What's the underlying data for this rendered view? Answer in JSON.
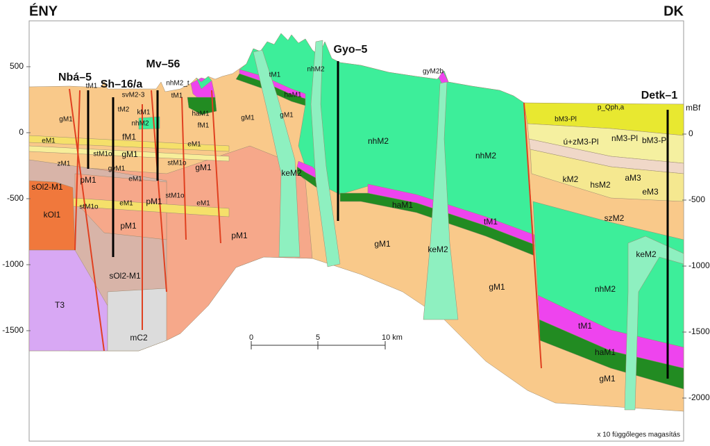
{
  "header": {
    "left": "ÉNY",
    "right": "DK"
  },
  "boreholes": [
    "Nbá–5",
    "Sh–16/a",
    "Mv–56",
    "Gyo–5",
    "Detk–1"
  ],
  "units": [
    "gM1",
    "tM1",
    "eM1",
    "zM1",
    "sOl2-M1",
    "kOl1",
    "pM1",
    "stM1o",
    "gyM1",
    "stM1o",
    "svM2-3",
    "tM2",
    "kM1",
    "nhM2",
    "fM1",
    "gM1",
    "eM1",
    "eM1",
    "pM1",
    "pM1",
    "sOl2-M1",
    "T3",
    "mC2",
    "nhM2_t",
    "tM1",
    "haM1",
    "fM1",
    "eM1",
    "stM1o",
    "gM1",
    "stM1o",
    "eM1",
    "pM1",
    "gM1",
    "tM1",
    "haM1",
    "gM1",
    "nhM2",
    "keM2",
    "nhM2",
    "gyM2b",
    "nhM2",
    "haM1",
    "tM1",
    "gM1",
    "keM2",
    "gM1",
    "p_Qph,a",
    "bM3-Pl",
    "nM3-Pl",
    "bM3-Pl",
    "ú+zM3-Pl",
    "kM2",
    "hsM2",
    "aM3",
    "eM3",
    "szM2",
    "keM2",
    "nhM2",
    "tM1",
    "haM1",
    "gM1"
  ],
  "depth_axis": {
    "left_ticks": [
      "500",
      "0",
      "-500",
      "-1000",
      "-1500"
    ],
    "right_ticks": [
      "0",
      "-500",
      "-1000",
      "-1500",
      "-2000"
    ],
    "unit": "mBf"
  },
  "scale_bar": [
    "0",
    "5",
    "10 km"
  ],
  "note": "x 10 függőleges magasítás"
}
